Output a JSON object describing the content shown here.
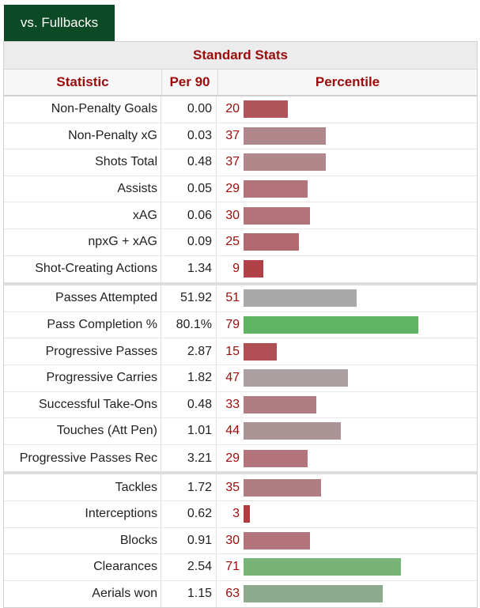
{
  "tab": {
    "label": "vs. Fullbacks"
  },
  "table": {
    "title": "Standard Stats",
    "headers": {
      "stat": "Statistic",
      "per90": "Per 90",
      "percentile": "Percentile"
    },
    "groups": [
      [
        {
          "stat": "Non-Penalty Goals",
          "per90": "0.00",
          "percentile": 20,
          "color": "#b0565b"
        },
        {
          "stat": "Non-Penalty xG",
          "per90": "0.03",
          "percentile": 37,
          "color": "#b0878a"
        },
        {
          "stat": "Shots Total",
          "per90": "0.48",
          "percentile": 37,
          "color": "#b0878a"
        },
        {
          "stat": "Assists",
          "per90": "0.05",
          "percentile": 29,
          "color": "#b3737a"
        },
        {
          "stat": "xAG",
          "per90": "0.06",
          "percentile": 30,
          "color": "#b3737a"
        },
        {
          "stat": "npxG + xAG",
          "per90": "0.09",
          "percentile": 25,
          "color": "#b06a70"
        },
        {
          "stat": "Shot-Creating Actions",
          "per90": "1.34",
          "percentile": 9,
          "color": "#b04147"
        }
      ],
      [
        {
          "stat": "Passes Attempted",
          "per90": "51.92",
          "percentile": 51,
          "color": "#a9a9a9"
        },
        {
          "stat": "Pass Completion %",
          "per90": "80.1%",
          "percentile": 79,
          "color": "#5eb462"
        },
        {
          "stat": "Progressive Passes",
          "per90": "2.87",
          "percentile": 15,
          "color": "#af4f53"
        },
        {
          "stat": "Progressive Carries",
          "per90": "1.82",
          "percentile": 47,
          "color": "#ac9fa1"
        },
        {
          "stat": "Successful Take-Ons",
          "per90": "0.48",
          "percentile": 33,
          "color": "#b07d82"
        },
        {
          "stat": "Touches (Att Pen)",
          "per90": "1.01",
          "percentile": 44,
          "color": "#ac9496"
        },
        {
          "stat": "Progressive Passes Rec",
          "per90": "3.21",
          "percentile": 29,
          "color": "#b3737a"
        }
      ],
      [
        {
          "stat": "Tackles",
          "per90": "1.72",
          "percentile": 35,
          "color": "#b07d82"
        },
        {
          "stat": "Interceptions",
          "per90": "0.62",
          "percentile": 3,
          "color": "#b03a3f"
        },
        {
          "stat": "Blocks",
          "per90": "0.91",
          "percentile": 30,
          "color": "#b3737a"
        },
        {
          "stat": "Clearances",
          "per90": "2.54",
          "percentile": 71,
          "color": "#78b478"
        },
        {
          "stat": "Aerials won",
          "per90": "1.15",
          "percentile": 63,
          "color": "#8cab8c"
        }
      ]
    ]
  }
}
